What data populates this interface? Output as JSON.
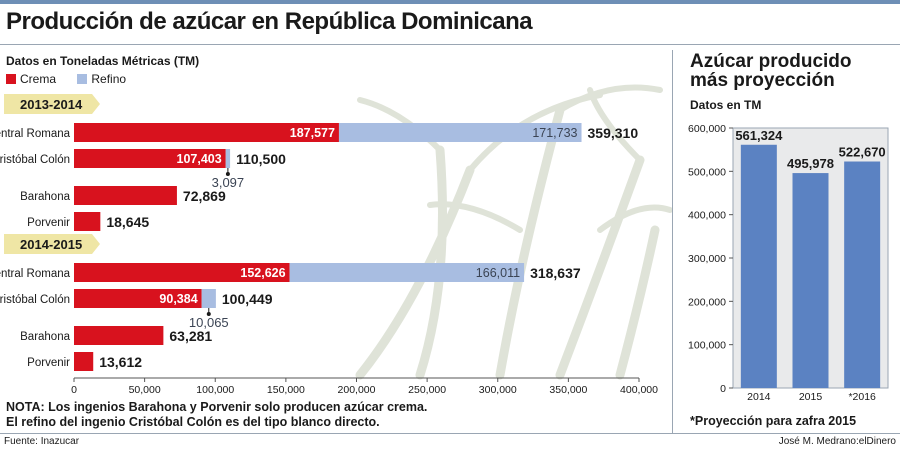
{
  "header": {
    "title": "Producción de azúcar en República Dominicana"
  },
  "left": {
    "subtitle": "Datos en Toneladas Métricas (TM)"
  },
  "right": {
    "title_line1": "Azúcar producido",
    "title_line2": "más proyección",
    "subtitle": "Datos en TM"
  },
  "notes": {
    "line1": "NOTA: Los ingenios Barahona y Porvenir solo producen azúcar crema.",
    "line2": "El refino del ingenio Cristóbal Colón es del tipo blanco directo.",
    "projection": "*Proyección para zafra 2015"
  },
  "footer": {
    "source": "Fuente: Inazucar",
    "credit": "José M. Medrano:elDinero"
  },
  "colors": {
    "crema": "#d8121e",
    "refino": "#a8bde1",
    "total_bar": "#5b82c2",
    "tag": "#efe6a5",
    "cane": "#dfe3d8"
  },
  "chart_data": [
    {
      "type": "bar",
      "orientation": "horizontal",
      "stacked": true,
      "legend": [
        {
          "name": "Crema",
          "color": "#d8121e"
        },
        {
          "name": "Refino",
          "color": "#a8bde1"
        }
      ],
      "groups": [
        {
          "label": "2013-2014",
          "rows": [
            {
              "name": "Central Romana",
              "crema": 187577,
              "refino": 171733,
              "crema_label": "187,577",
              "refino_label": "171,733",
              "total_label": "359,310"
            },
            {
              "name": "Cristóbal Colón",
              "crema": 107403,
              "refino": 3097,
              "crema_label": "107,403",
              "refino_label": "3,097",
              "total_label": "110,500"
            },
            {
              "name": "Barahona",
              "crema": 72869,
              "refino": 0,
              "total_label": "72,869"
            },
            {
              "name": "Porvenir",
              "crema": 18645,
              "refino": 0,
              "total_label": "18,645"
            }
          ]
        },
        {
          "label": "2014-2015",
          "rows": [
            {
              "name": "Central Romana",
              "crema": 152626,
              "refino": 166011,
              "crema_label": "152,626",
              "refino_label": "166,011",
              "total_label": "318,637"
            },
            {
              "name": "Cristóbal Colón",
              "crema": 90384,
              "refino": 10065,
              "crema_label": "90,384",
              "refino_label": "10,065",
              "total_label": "100,449"
            },
            {
              "name": "Barahona",
              "crema": 63281,
              "refino": 0,
              "total_label": "63,281"
            },
            {
              "name": "Porvenir",
              "crema": 13612,
              "refino": 0,
              "total_label": "13,612"
            }
          ]
        }
      ],
      "xlim": [
        0,
        400000
      ],
      "xticks": [
        0,
        50000,
        100000,
        150000,
        200000,
        250000,
        300000,
        350000,
        400000
      ],
      "xtick_labels": [
        "0",
        "50,000",
        "100,000",
        "150,000",
        "200,000",
        "250,000",
        "300,000",
        "350,000",
        "400,000"
      ],
      "legend_position": "top-left",
      "grid": false
    },
    {
      "type": "bar",
      "orientation": "vertical",
      "categories": [
        "2014",
        "2015",
        "*2016"
      ],
      "values": [
        561324,
        495978,
        522670
      ],
      "value_labels": [
        "561,324",
        "495,978",
        "522,670"
      ],
      "ylim": [
        0,
        600000
      ],
      "yticks": [
        0,
        100000,
        200000,
        300000,
        400000,
        500000,
        600000
      ],
      "ytick_labels": [
        "0",
        "100,000",
        "200,000",
        "300,000",
        "400,000",
        "500,000",
        "600,000"
      ],
      "grid": false
    }
  ]
}
